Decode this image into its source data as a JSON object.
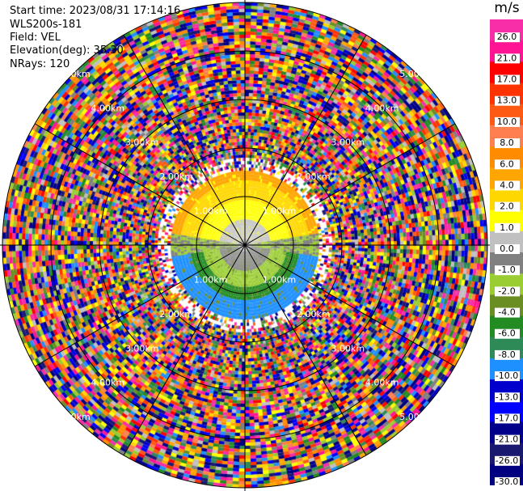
{
  "header": {
    "start_time": "Start time: 2023/08/31 17:14:16",
    "instrument": "WLS200s-181",
    "field": "Field: VEL",
    "elevation": "Elevation(deg): 35.30",
    "nrays": "NRays: 120"
  },
  "chart_data": {
    "type": "heatmap",
    "subtype": "ppi-polar",
    "range_ring_labels": [
      "1.00km",
      "2.00km",
      "3.00km",
      "4.00km",
      "5.00km"
    ],
    "rings_km": [
      1,
      2,
      3,
      4,
      5
    ],
    "max_range_km": 5.0,
    "rays": 120,
    "colorbar": {
      "unit": "m/s",
      "ticks": [
        "26.0",
        "21.0",
        "17.0",
        "13.0",
        "10.0",
        "8.0",
        "6.0",
        "4.0",
        "2.0",
        "1.0",
        "0.0",
        "-1.0",
        "-2.0",
        "-4.0",
        "-6.0",
        "-8.0",
        "-10.0",
        "-13.0",
        "-17.0",
        "-21.0",
        "-26.0",
        "-30.0"
      ],
      "colors": [
        "#f72ea8",
        "#ff1493",
        "#ff0000",
        "#ff3300",
        "#ff5a14",
        "#ff7f50",
        "#ff8c00",
        "#ffa500",
        "#ffd700",
        "#ffff00",
        "#c0c0c0",
        "#808080",
        "#9acd32",
        "#6b8e23",
        "#228b22",
        "#2e8b57",
        "#1e90ff",
        "#0000cd",
        "#0000ff",
        "#00008b",
        "#191970",
        "#000080"
      ]
    },
    "near_field": {
      "north_sector": "positive velocities 1.0 to 6.0 m/s (yellow/orange)",
      "south_sector": "negative velocities -1.0 to -10.0 m/s (green/blue)"
    }
  }
}
